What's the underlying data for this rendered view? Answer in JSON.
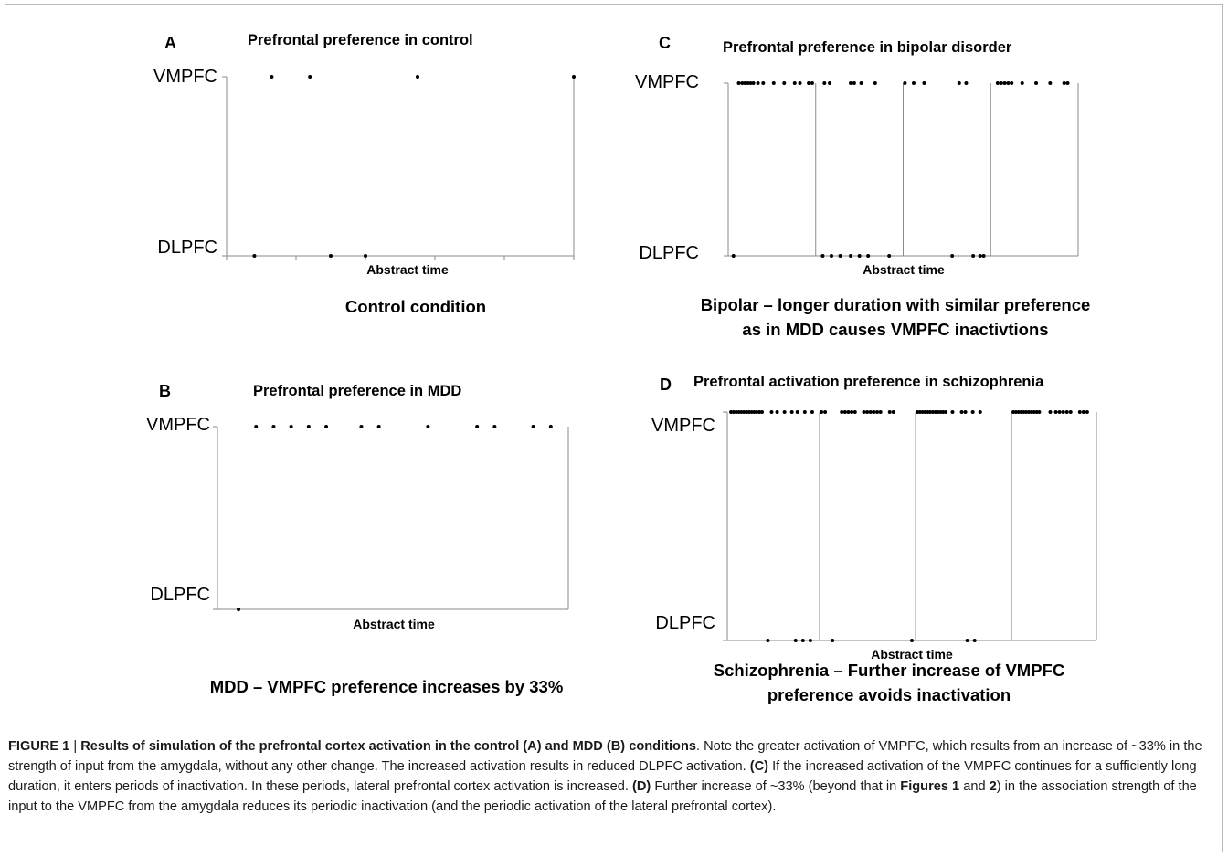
{
  "figure_label": "FIGURE 1",
  "separator": " | ",
  "caption_segments": [
    {
      "text": "Results of simulation of the prefrontal cortex activation in the control (A) and MDD (B) conditions",
      "bold": true
    },
    {
      "text": ". Note the greater activation of VMPFC, which results from an increase of ~33% in the strength of input from the amygdala, without any other change. The increased activation results in reduced DLPFC activation. ",
      "bold": false
    },
    {
      "text": "(C)",
      "bold": true
    },
    {
      "text": " If the increased activation of the VMPFC continues for a sufficiently long duration, it enters periods of inactivation. In these periods, lateral prefrontal cortex activation is increased. ",
      "bold": false
    },
    {
      "text": "(D)",
      "bold": true
    },
    {
      "text": " Further increase of ~33% (beyond that in ",
      "bold": false
    },
    {
      "text": "Figures 1",
      "bold": true
    },
    {
      "text": " and ",
      "bold": false
    },
    {
      "text": "2",
      "bold": true
    },
    {
      "text": ") in the association strength of the input to the VMPFC from the amygdala reduces its periodic inactivation (and the periodic activation of the lateral prefrontal cortex).",
      "bold": false
    }
  ],
  "chart_data": [
    {
      "panel": "A",
      "type": "scatter",
      "title": "Prefrontal preference in control",
      "xlabel": "Abstract time",
      "categories": [
        "DLPFC",
        "VMPFC"
      ],
      "subtitle": [
        "Control condition"
      ],
      "xlim": [
        0,
        100
      ],
      "x_ticks": [
        0,
        20,
        40,
        60,
        80,
        100
      ],
      "dividers": [],
      "series": [
        {
          "state": "VMPFC",
          "x": [
            13,
            24,
            55,
            100
          ]
        },
        {
          "state": "DLPFC",
          "x": [
            8,
            30,
            40
          ]
        }
      ]
    },
    {
      "panel": "B",
      "type": "scatter",
      "title": "Prefrontal  preference in MDD",
      "xlabel": "Abstract time",
      "categories": [
        "DLPFC",
        "VMPFC"
      ],
      "subtitle": [
        "MDD – VMPFC preference increases by 33%"
      ],
      "xlim": [
        0,
        100
      ],
      "x_ticks": [],
      "dividers": [],
      "series": [
        {
          "state": "VMPFC",
          "x": [
            11,
            16,
            21,
            26,
            31,
            41,
            46,
            60,
            74,
            79,
            90,
            95
          ]
        },
        {
          "state": "DLPFC",
          "x": [
            6
          ]
        }
      ]
    },
    {
      "panel": "C",
      "type": "scatter",
      "title": "Prefrontal  preference in bipolar disorder",
      "xlabel": "Abstract time",
      "categories": [
        "DLPFC",
        "VMPFC"
      ],
      "subtitle": [
        "Bipolar – longer duration with similar preference",
        "as in MDD causes VMPFC inactivtions"
      ],
      "xlim": [
        0,
        100
      ],
      "x_ticks": [],
      "dividers": [
        25,
        50,
        75
      ],
      "series": [
        {
          "state": "VMPFC",
          "x": [
            3.0,
            4.0,
            4.8,
            5.6,
            6.4,
            7.2,
            8.5,
            10.0,
            13.0,
            16.0,
            19.0,
            20.5,
            23.0,
            24.0,
            27.5,
            29.0,
            35.0,
            36.0,
            38.0,
            42.0,
            50.5,
            53.0,
            56.0,
            66.0,
            68.0,
            77.0,
            78.0,
            79.0,
            80.0,
            81.0,
            84.0,
            88.0,
            92.0,
            96.0,
            97.0
          ]
        },
        {
          "state": "DLPFC",
          "x": [
            1.5,
            27.0,
            29.5,
            32.0,
            35.0,
            37.5,
            40.0,
            46.0,
            64.0,
            70.0,
            72.0,
            73.0
          ]
        }
      ]
    },
    {
      "panel": "D",
      "type": "scatter",
      "title": "Prefrontal activation preference in schizophrenia",
      "xlabel": "Abstract time",
      "categories": [
        "DLPFC",
        "VMPFC"
      ],
      "subtitle": [
        "Schizophrenia – Further increase of VMPFC",
        "preference avoids inactivation"
      ],
      "xlim": [
        0,
        100
      ],
      "x_ticks": [],
      "dividers": [
        25,
        51,
        77
      ],
      "series": [
        {
          "state": "VMPFC",
          "x": [
            1.0,
            1.7,
            2.4,
            3.1,
            3.8,
            4.5,
            5.2,
            5.9,
            6.6,
            7.3,
            8.0,
            8.7,
            9.4,
            12.0,
            13.5,
            15.5,
            17.5,
            19.0,
            21.0,
            23.0,
            25.5,
            26.5,
            31.0,
            31.9,
            32.8,
            33.7,
            34.6,
            37.0,
            37.9,
            38.8,
            39.7,
            40.6,
            41.5,
            44.0,
            45.0,
            51.5,
            52.2,
            52.9,
            53.6,
            54.3,
            55.0,
            55.7,
            56.4,
            57.1,
            57.8,
            58.5,
            59.2,
            61.0,
            63.5,
            64.5,
            66.5,
            68.5,
            77.5,
            78.2,
            78.9,
            79.6,
            80.3,
            81.0,
            81.7,
            82.4,
            83.1,
            83.8,
            84.5,
            87.5,
            89.0,
            90.0,
            91.0,
            92.0,
            93.0,
            95.5,
            96.5,
            97.5
          ]
        },
        {
          "state": "DLPFC",
          "x": [
            11.0,
            18.5,
            20.5,
            22.5,
            28.5,
            50.0,
            65.0,
            67.0
          ]
        }
      ]
    }
  ]
}
